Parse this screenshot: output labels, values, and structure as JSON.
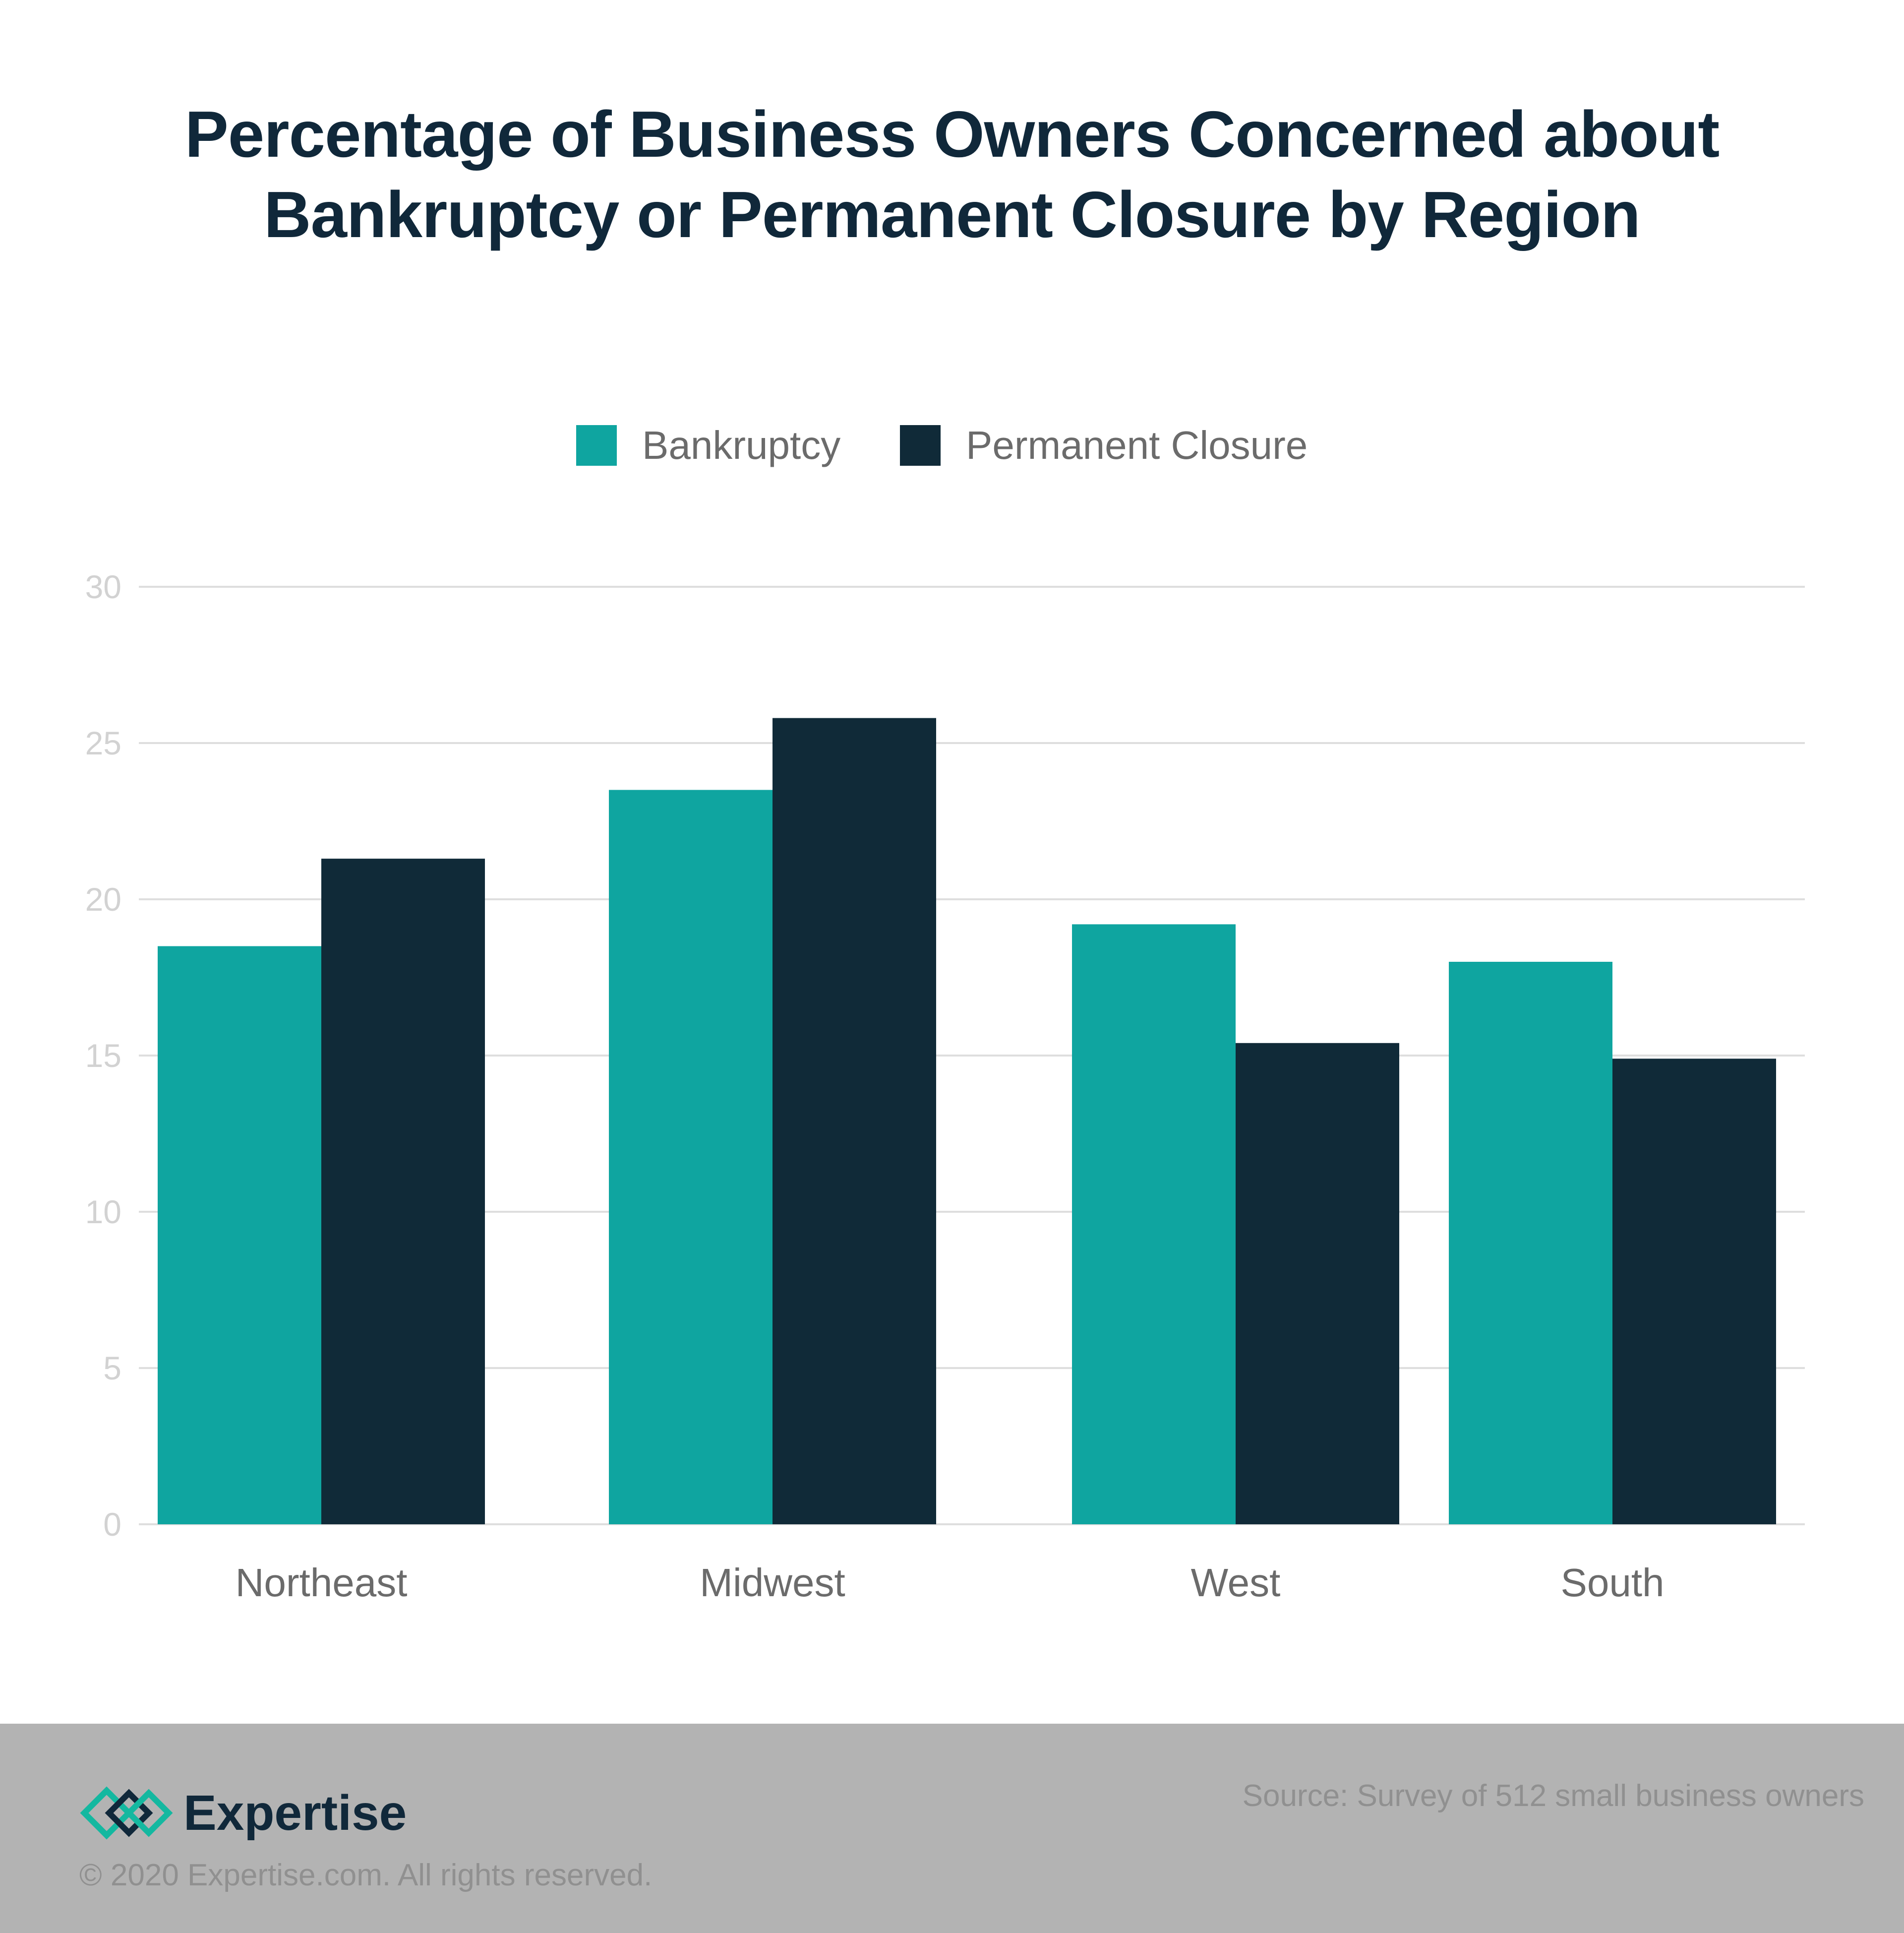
{
  "chart_data": {
    "type": "bar",
    "title": "Percentage of Business Owners Concerned about Bankruptcy or Permanent Closure by Region",
    "title_lines": [
      "Percentage of Business Owners Concerned about",
      "Bankruptcy or Permanent Closure by Region"
    ],
    "categories": [
      "Northeast",
      "Midwest",
      "West",
      "South"
    ],
    "series": [
      {
        "name": "Bankruptcy",
        "color": "#0fa5a0",
        "values": [
          18.5,
          23.5,
          19.2,
          18.0
        ]
      },
      {
        "name": "Permanent Closure",
        "color": "#102a38",
        "values": [
          21.3,
          25.8,
          15.4,
          14.9
        ]
      }
    ],
    "ylim": [
      0,
      30
    ],
    "yticks": [
      0,
      5,
      10,
      15,
      20,
      25,
      30
    ],
    "xlabel": "",
    "ylabel": "",
    "grid": true,
    "legend": "top-center"
  },
  "footer": {
    "brand": "Expertise",
    "logo_icon": "expertise-diamond-logo-icon",
    "copyright": "© 2020 Expertise.com. All rights reserved.",
    "source": "Source: Survey of 512 small business owners"
  }
}
